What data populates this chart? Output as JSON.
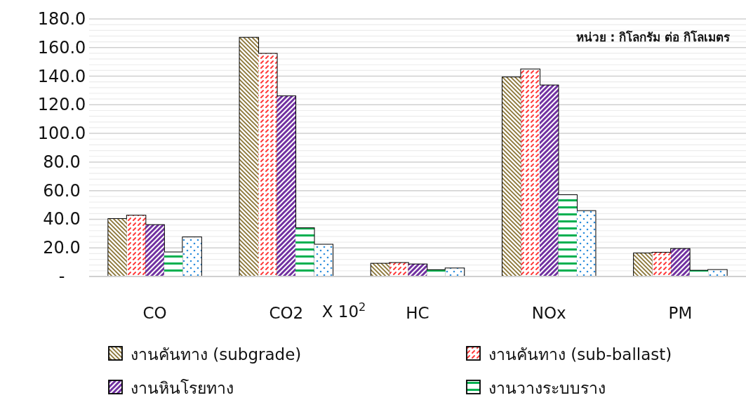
{
  "chart_data": {
    "type": "bar",
    "categories": [
      "CO",
      "CO2",
      "HC",
      "NOx",
      "PM"
    ],
    "series": [
      {
        "name": "งานคันทาง (subgrade)",
        "color": "#8b7536",
        "values": [
          40.2,
          166.9,
          9.0,
          139.2,
          16.2
        ]
      },
      {
        "name": "งานคันทาง (sub-ballast)",
        "color": "#ff3b3b",
        "values": [
          42.6,
          155.7,
          9.5,
          144.8,
          16.7
        ]
      },
      {
        "name": "งานหินโรยทาง",
        "color": "#7030a0",
        "values": [
          36.0,
          126.0,
          8.5,
          133.6,
          19.3
        ]
      },
      {
        "name": "งานวางระบบราง",
        "color": "#00b050",
        "values": [
          16.9,
          33.8,
          4.5,
          56.9,
          4.1
        ]
      },
      {
        "color": "#2f8fdd",
        "values": [
          27.4,
          22.3,
          5.7,
          45.8,
          4.6
        ]
      }
    ],
    "ylim": [
      0,
      180
    ],
    "yticks": [
      {
        "value": 0,
        "label": "-"
      },
      {
        "value": 4,
        "label": null
      },
      {
        "value": 8,
        "label": null
      },
      {
        "value": 12,
        "label": null
      },
      {
        "value": 16,
        "label": null
      },
      {
        "value": 20,
        "label": "20.0"
      },
      {
        "value": 24,
        "label": null
      },
      {
        "value": 28,
        "label": null
      },
      {
        "value": 32,
        "label": null
      },
      {
        "value": 36,
        "label": null
      },
      {
        "value": 40,
        "label": "40.0"
      },
      {
        "value": 44,
        "label": null
      },
      {
        "value": 48,
        "label": null
      },
      {
        "value": 52,
        "label": null
      },
      {
        "value": 56,
        "label": null
      },
      {
        "value": 60,
        "label": "60.0"
      },
      {
        "value": 64,
        "label": null
      },
      {
        "value": 68,
        "label": null
      },
      {
        "value": 72,
        "label": null
      },
      {
        "value": 76,
        "label": null
      },
      {
        "value": 80,
        "label": "80.0"
      },
      {
        "value": 84,
        "label": null
      },
      {
        "value": 88,
        "label": null
      },
      {
        "value": 92,
        "label": null
      },
      {
        "value": 96,
        "label": null
      },
      {
        "value": 100,
        "label": "100.0"
      },
      {
        "value": 104,
        "label": null
      },
      {
        "value": 108,
        "label": null
      },
      {
        "value": 112,
        "label": null
      },
      {
        "value": 116,
        "label": null
      },
      {
        "value": 120,
        "label": "120.0"
      },
      {
        "value": 124,
        "label": null
      },
      {
        "value": 128,
        "label": null
      },
      {
        "value": 132,
        "label": null
      },
      {
        "value": 136,
        "label": null
      },
      {
        "value": 140,
        "label": "140.0"
      },
      {
        "value": 144,
        "label": null
      },
      {
        "value": 148,
        "label": null
      },
      {
        "value": 152,
        "label": null
      },
      {
        "value": 156,
        "label": null
      },
      {
        "value": 160,
        "label": "160.0"
      },
      {
        "value": 164,
        "label": null
      },
      {
        "value": 168,
        "label": null
      },
      {
        "value": 172,
        "label": null
      },
      {
        "value": 176,
        "label": null
      },
      {
        "value": 180,
        "label": "180.0"
      }
    ],
    "annotations": [
      "หน่วย : กิโลกรัม ต่อ กิโลเมตร",
      "X 10$^{2}$"
    ],
    "grid": "y",
    "legend": "bottom"
  }
}
